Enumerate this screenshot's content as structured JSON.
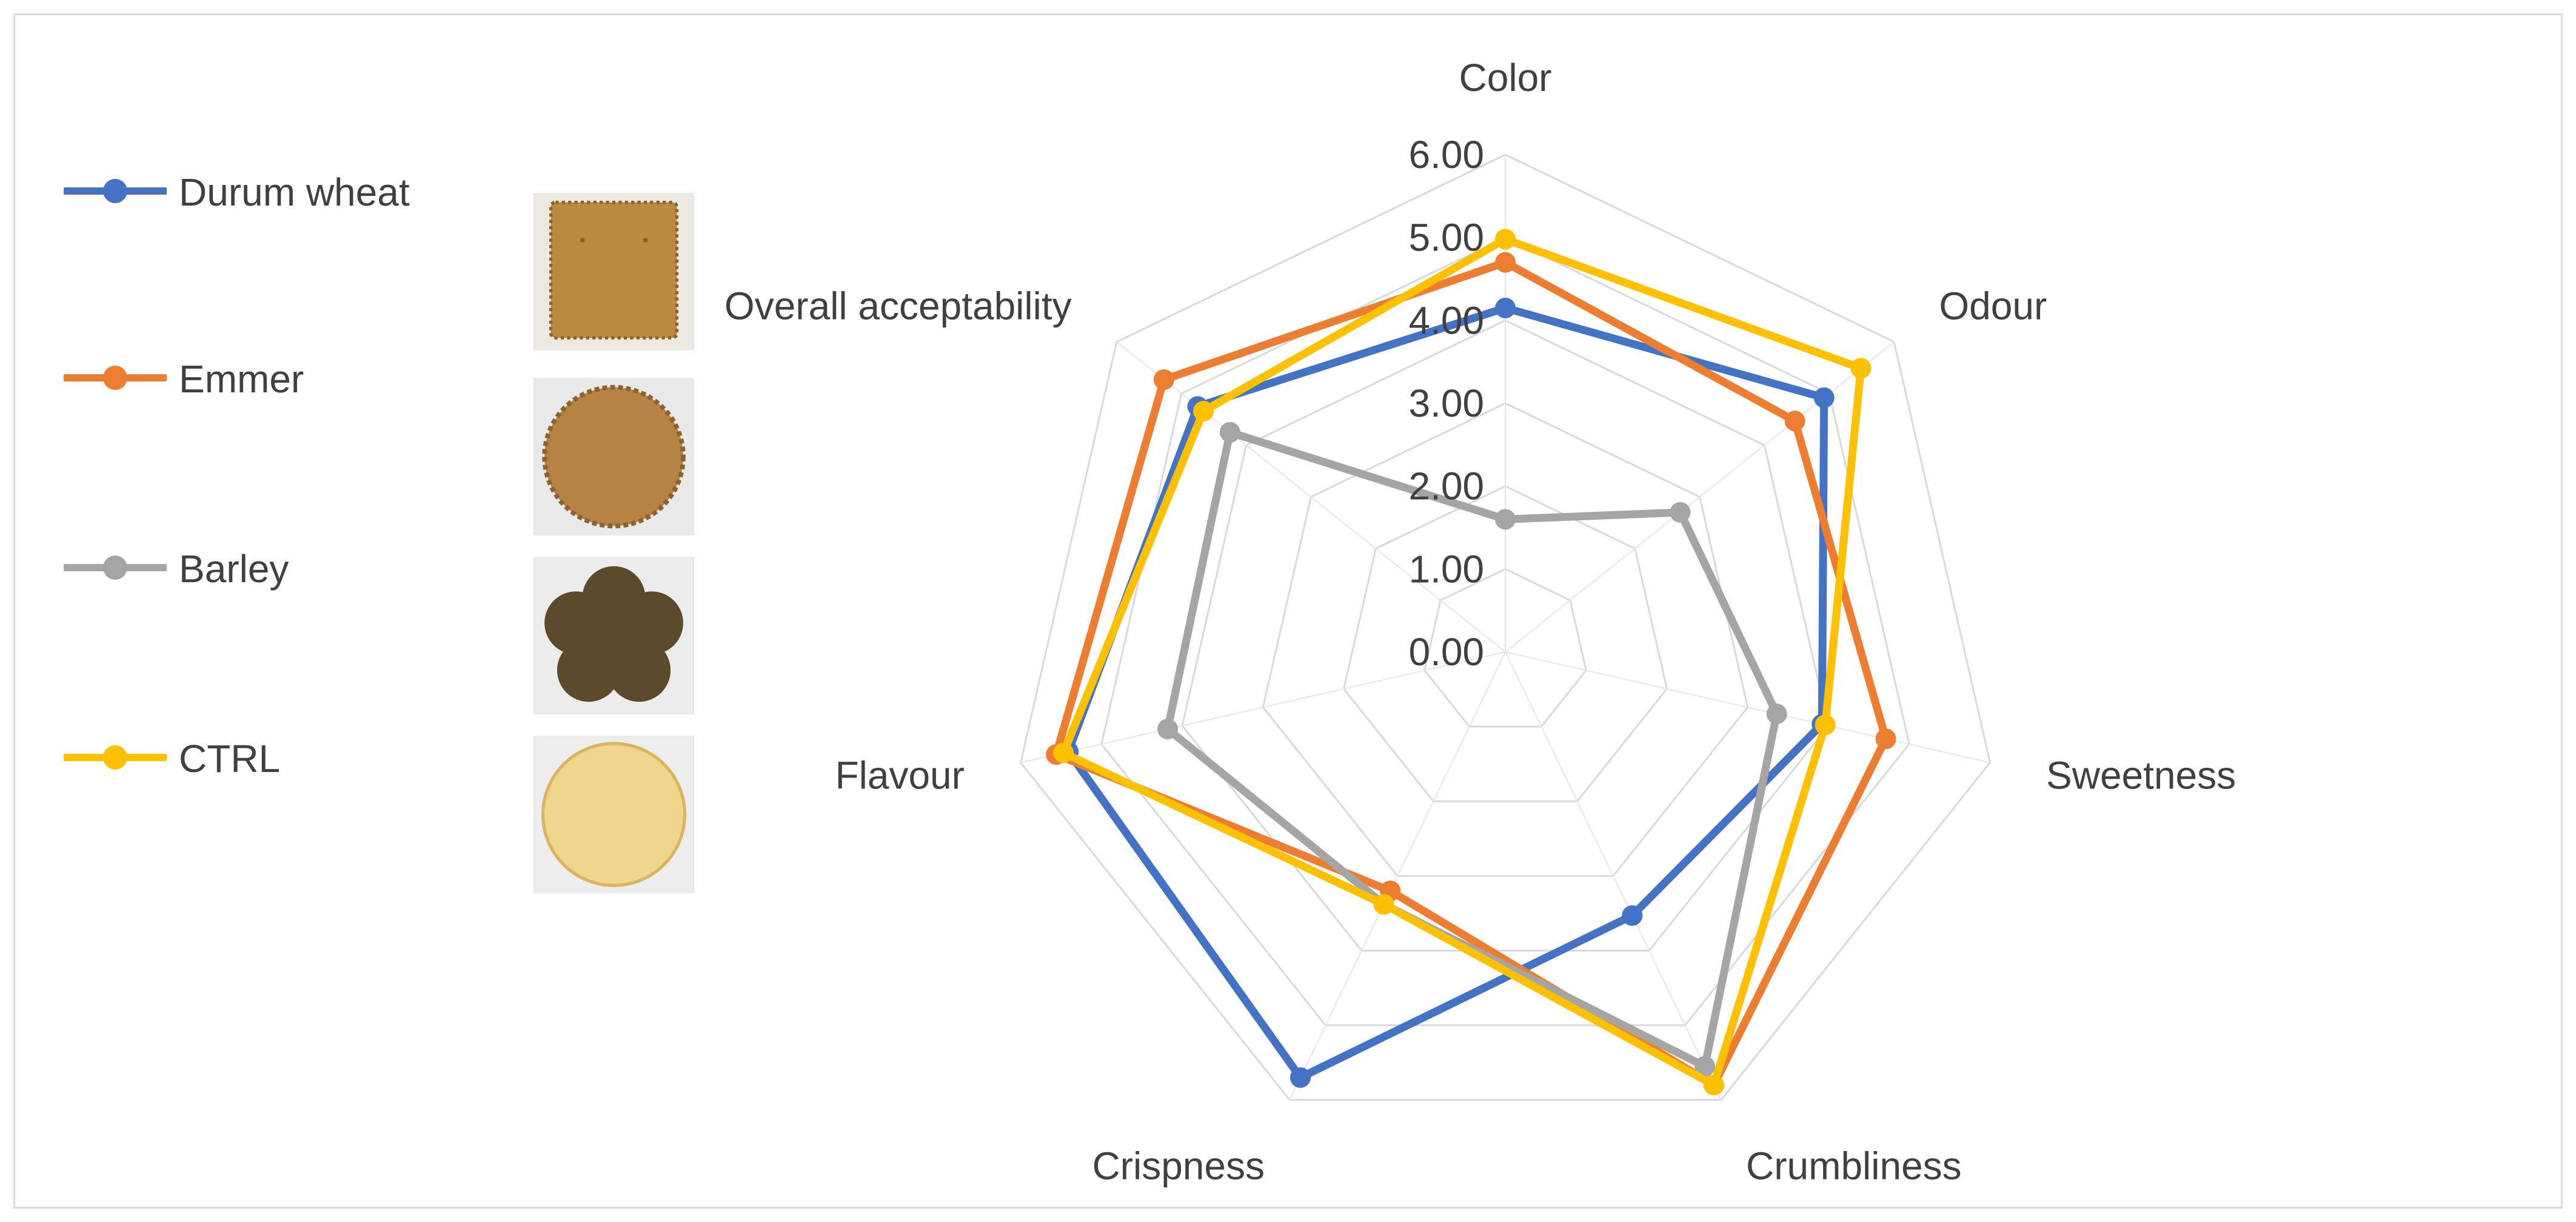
{
  "chart_data": {
    "type": "radar",
    "title": "",
    "axes": [
      "Color",
      "Odour",
      "Sweetness",
      "Crumbliness",
      "Crispness",
      "Flavour",
      "Overall acceptability"
    ],
    "rlim": [
      0,
      6
    ],
    "ticks": [
      "0.00",
      "1.00",
      "2.00",
      "3.00",
      "4.00",
      "5.00",
      "6.00"
    ],
    "tick_values": [
      0,
      1,
      2,
      3,
      4,
      5,
      6
    ],
    "grid": true,
    "legend_position": "left",
    "series": [
      {
        "name": "Durum wheat",
        "color": "#4472c4",
        "values": [
          4.15,
          4.92,
          3.92,
          3.53,
          5.7,
          5.41,
          4.75
        ]
      },
      {
        "name": "Emmer",
        "color": "#ed7d31",
        "values": [
          4.7,
          4.47,
          4.71,
          5.8,
          3.2,
          5.56,
          5.27
        ]
      },
      {
        "name": "Barley",
        "color": "#a5a5a5",
        "values": [
          1.6,
          2.7,
          3.36,
          5.55,
          3.38,
          4.18,
          4.25
        ]
      },
      {
        "name": "CTRL",
        "color": "#ffc000",
        "values": [
          4.98,
          5.49,
          3.96,
          5.8,
          3.38,
          5.47,
          4.66
        ]
      }
    ]
  },
  "thumbnails": [
    {
      "name": "durum-wheat-biscuit",
      "shape": "square",
      "color": "#b98a3f"
    },
    {
      "name": "emmer-biscuit",
      "shape": "round-scalloped",
      "color": "#b58343"
    },
    {
      "name": "barley-biscuit",
      "shape": "flower",
      "color": "#5c4a2d"
    },
    {
      "name": "ctrl-biscuit",
      "shape": "round",
      "color": "#f0d68c"
    }
  ]
}
